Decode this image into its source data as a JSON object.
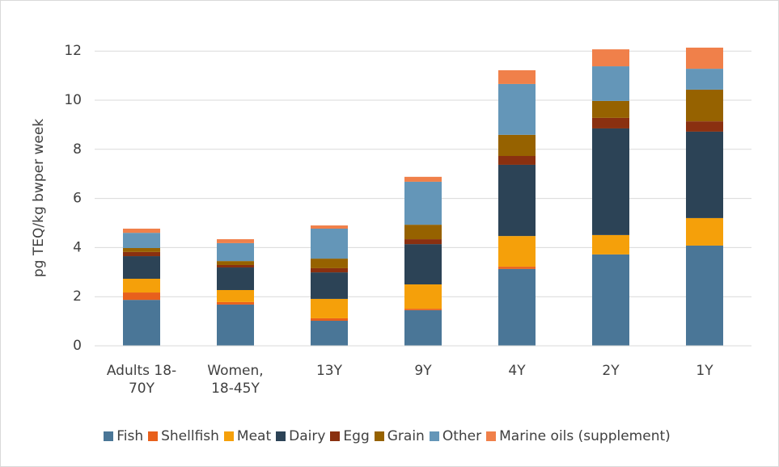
{
  "chart_data": {
    "type": "stacked_bar",
    "ylabel": "pg TEQ/kg bwper week",
    "categories": [
      "Adults 18-70Y",
      "Women, 18-45Y",
      "13Y",
      "9Y",
      "4Y",
      "2Y",
      "1Y"
    ],
    "series": [
      {
        "name": "Fish",
        "color": "#4a7697",
        "values": [
          1.87,
          1.68,
          1.02,
          1.45,
          3.13,
          3.72,
          4.08
        ]
      },
      {
        "name": "Shellfish",
        "color": "#e8601c",
        "values": [
          0.3,
          0.1,
          0.1,
          0.06,
          0.09,
          0,
          0
        ]
      },
      {
        "name": "Meat",
        "color": "#f5a00a",
        "values": [
          0.56,
          0.49,
          0.79,
          0.99,
          1.25,
          0.79,
          1.12
        ]
      },
      {
        "name": "Dairy",
        "color": "#2c4356",
        "values": [
          0.92,
          0.92,
          1.08,
          1.64,
          2.9,
          4.34,
          3.52
        ]
      },
      {
        "name": "Egg",
        "color": "#8a3010",
        "values": [
          0.17,
          0.1,
          0.17,
          0.2,
          0.36,
          0.43,
          0.42
        ]
      },
      {
        "name": "Grain",
        "color": "#966200",
        "values": [
          0.16,
          0.16,
          0.39,
          0.59,
          0.86,
          0.69,
          1.29
        ]
      },
      {
        "name": "Other",
        "color": "#6496b8",
        "values": [
          0.62,
          0.73,
          1.22,
          1.75,
          2.07,
          1.41,
          0.85
        ]
      },
      {
        "name": "Marine oils (supplement)",
        "color": "#f0804a",
        "values": [
          0.17,
          0.16,
          0.13,
          0.2,
          0.56,
          0.69,
          0.86
        ]
      }
    ],
    "ylim": [
      0,
      12.5
    ],
    "yticks": [
      0,
      2,
      4,
      6,
      8,
      10,
      12
    ],
    "grid": true,
    "legend": "bottom"
  }
}
